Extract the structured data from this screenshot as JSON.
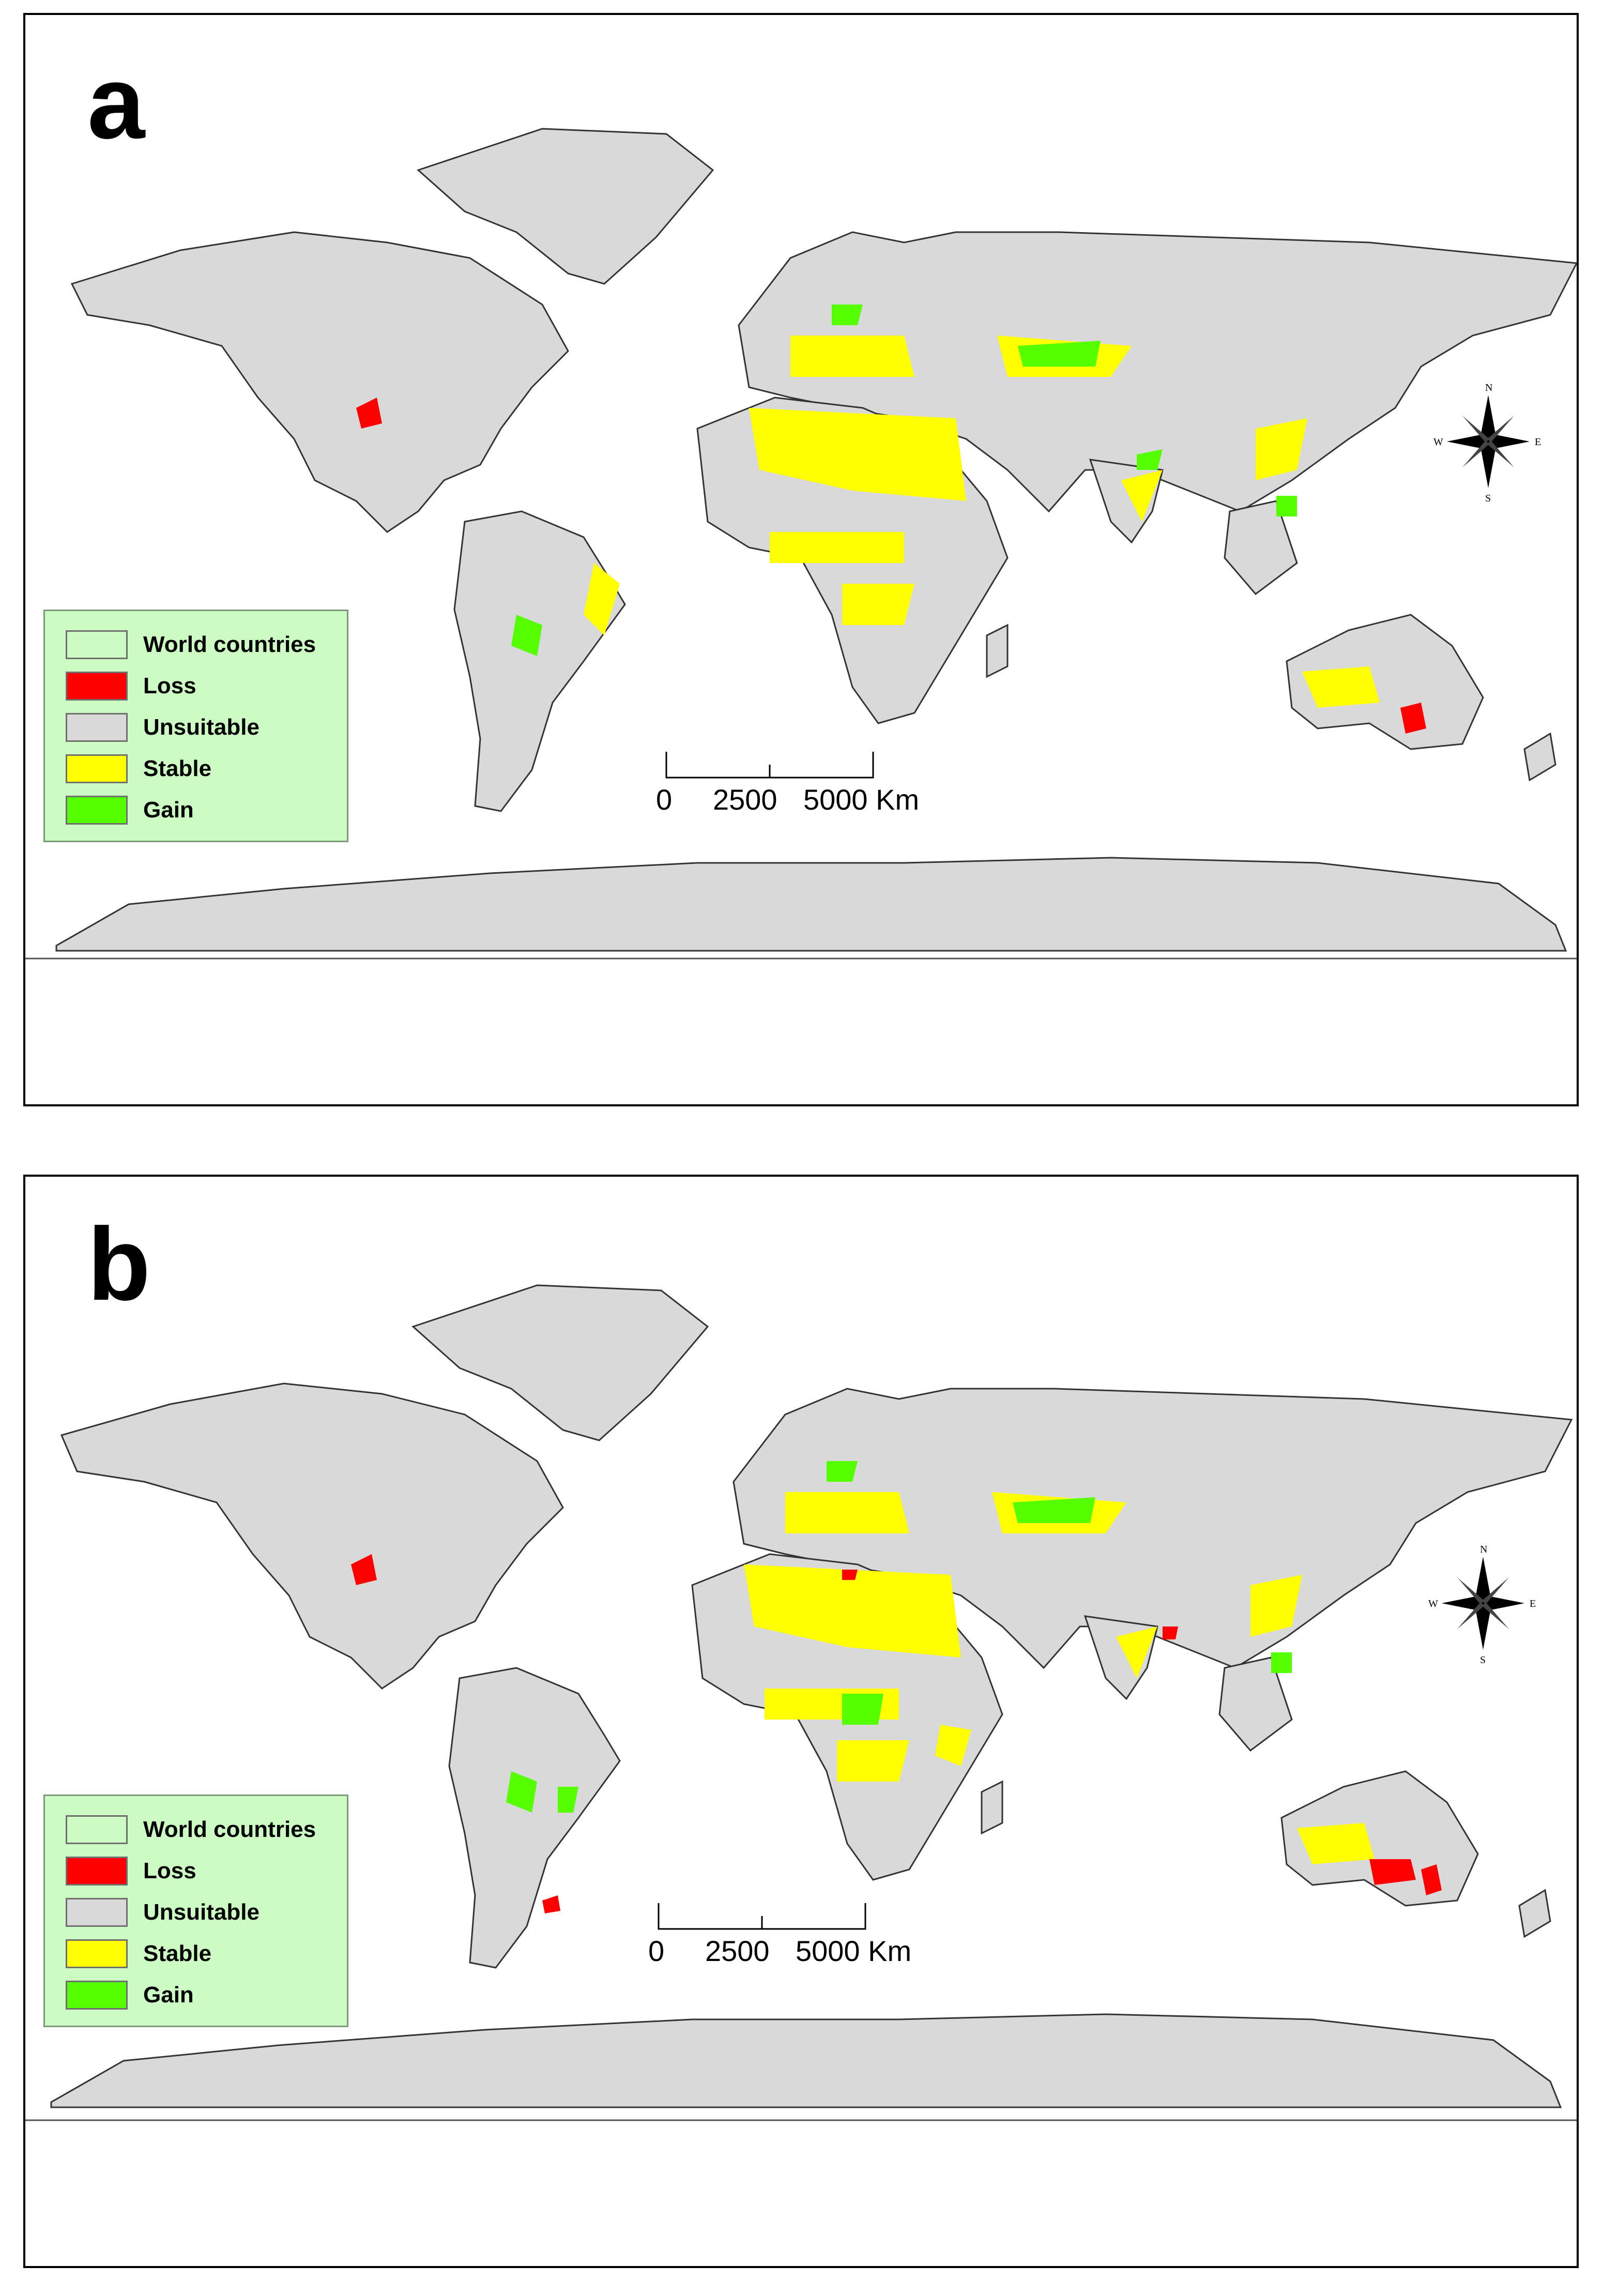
{
  "panels": [
    {
      "letter": "a",
      "legend": {
        "items": [
          {
            "label": "World countries",
            "color": "#ccfcc4"
          },
          {
            "label": "Loss",
            "color": "#ff0000"
          },
          {
            "label": "Unsuitable",
            "color": "#d9d9d9"
          },
          {
            "label": "Stable",
            "color": "#ffff00"
          },
          {
            "label": "Gain",
            "color": "#55ff00"
          }
        ]
      },
      "scale_bar": {
        "ticks": [
          "0",
          "2500",
          "5000 Km"
        ]
      },
      "north_arrow": {
        "labels": {
          "n": "N",
          "s": "S",
          "e": "E",
          "w": "W"
        }
      }
    },
    {
      "letter": "b",
      "legend": {
        "items": [
          {
            "label": "World countries",
            "color": "#ccfcc4"
          },
          {
            "label": "Loss",
            "color": "#ff0000"
          },
          {
            "label": "Unsuitable",
            "color": "#d9d9d9"
          },
          {
            "label": "Stable",
            "color": "#ffff00"
          },
          {
            "label": "Gain",
            "color": "#55ff00"
          }
        ]
      },
      "scale_bar": {
        "ticks": [
          "0",
          "2500",
          "5000 Km"
        ]
      },
      "north_arrow": {
        "labels": {
          "n": "N",
          "s": "S",
          "e": "E",
          "w": "W"
        }
      }
    }
  ],
  "colors": {
    "land": "#d9d9d9",
    "border": "#333333",
    "stable": "#ffff00",
    "gain": "#55ff00",
    "loss": "#ff0000",
    "legend_bg": "#ccfcc4"
  }
}
